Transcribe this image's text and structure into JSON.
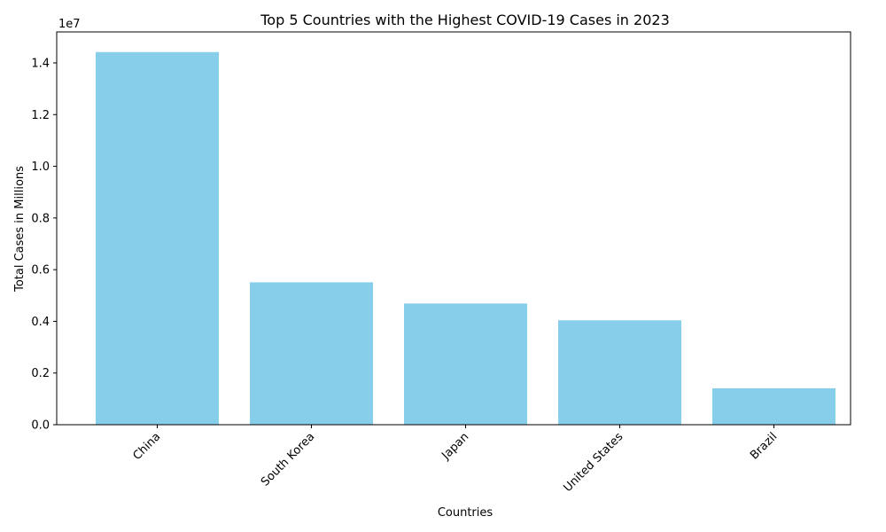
{
  "chart_data": {
    "type": "bar",
    "title": "Top 5 Countries with the Highest COVID-19 Cases in 2023",
    "xlabel": "Countries",
    "ylabel": "Total Cases in Millions",
    "categories": [
      "China",
      "South Korea",
      "Japan",
      "United States",
      "Brazil"
    ],
    "values": [
      14420000,
      5510000,
      4690000,
      4040000,
      1410000
    ],
    "ylim": [
      0,
      15200000
    ],
    "yticks": [
      0,
      2000000,
      4000000,
      6000000,
      8000000,
      10000000,
      12000000,
      14000000
    ],
    "ytick_labels": [
      "0.0",
      "0.2",
      "0.4",
      "0.6",
      "0.8",
      "1.0",
      "1.2",
      "1.4"
    ],
    "y_offset_label": "1e7",
    "bar_color": "#87ceeb",
    "grid": false,
    "x_tick_rotation": "45"
  }
}
